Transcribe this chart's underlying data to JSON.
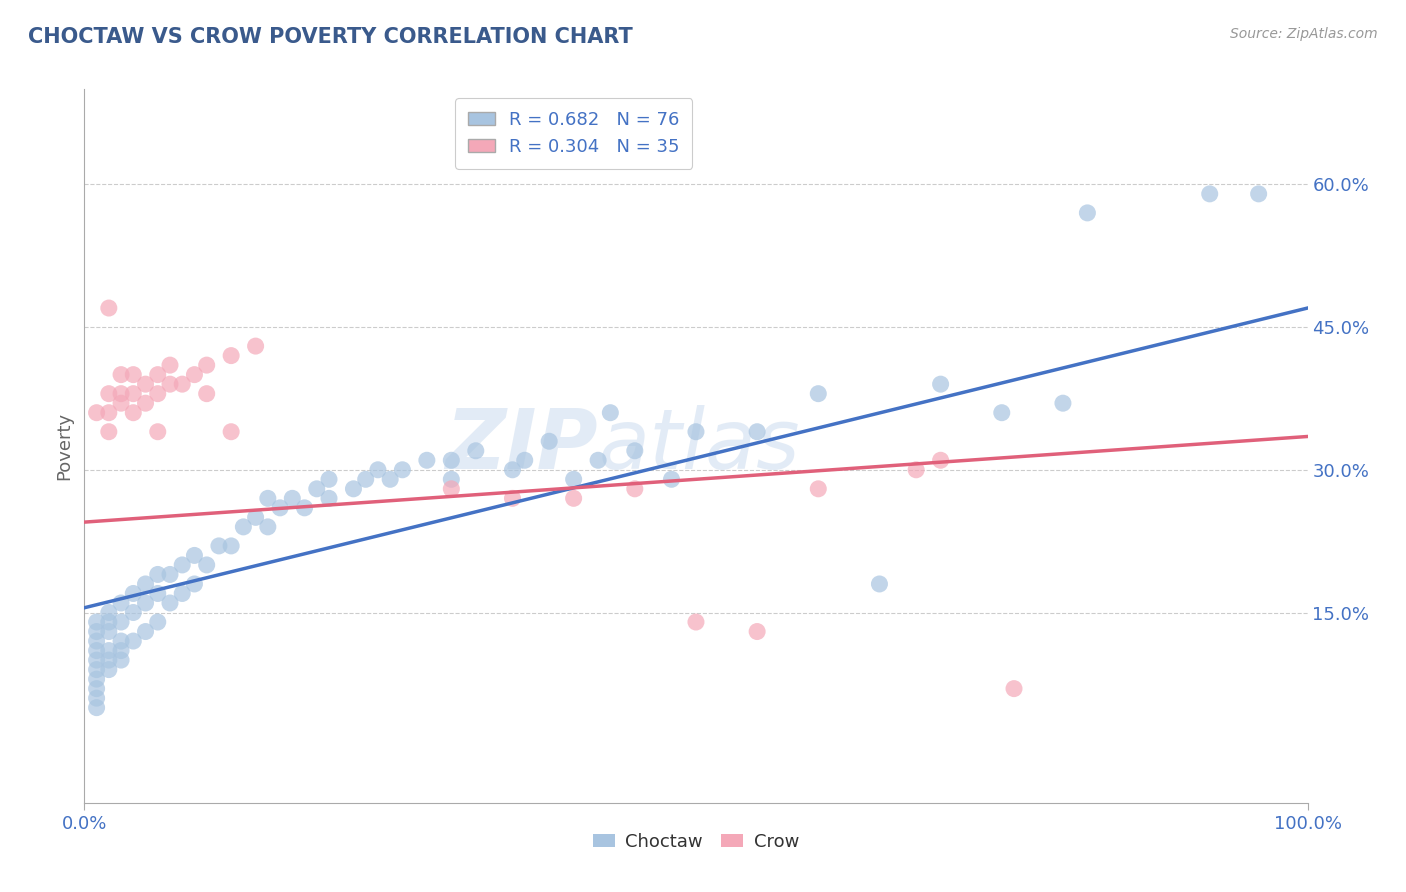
{
  "title": "CHOCTAW VS CROW POVERTY CORRELATION CHART",
  "source_text": "Source: ZipAtlas.com",
  "xlabel": "",
  "ylabel": "Poverty",
  "xlim": [
    0,
    1.0
  ],
  "ylim": [
    -0.05,
    0.7
  ],
  "x_ticks": [
    0.0,
    1.0
  ],
  "x_tick_labels": [
    "0.0%",
    "100.0%"
  ],
  "y_ticks": [
    0.15,
    0.3,
    0.45,
    0.6
  ],
  "y_tick_labels": [
    "15.0%",
    "30.0%",
    "45.0%",
    "60.0%"
  ],
  "choctaw_color": "#a8c4e0",
  "crow_color": "#f4a8b8",
  "choctaw_line_color": "#4472c4",
  "crow_line_color": "#e0607a",
  "choctaw_R": 0.682,
  "choctaw_N": 76,
  "crow_R": 0.304,
  "crow_N": 35,
  "watermark_zip": "ZIP",
  "watermark_atlas": "atlas",
  "background_color": "#ffffff",
  "grid_color": "#cccccc",
  "choctaw_scatter": [
    [
      0.01,
      0.05
    ],
    [
      0.01,
      0.06
    ],
    [
      0.01,
      0.07
    ],
    [
      0.01,
      0.08
    ],
    [
      0.01,
      0.09
    ],
    [
      0.01,
      0.1
    ],
    [
      0.01,
      0.11
    ],
    [
      0.01,
      0.12
    ],
    [
      0.01,
      0.13
    ],
    [
      0.01,
      0.14
    ],
    [
      0.02,
      0.09
    ],
    [
      0.02,
      0.1
    ],
    [
      0.02,
      0.11
    ],
    [
      0.02,
      0.13
    ],
    [
      0.02,
      0.14
    ],
    [
      0.02,
      0.15
    ],
    [
      0.03,
      0.1
    ],
    [
      0.03,
      0.11
    ],
    [
      0.03,
      0.12
    ],
    [
      0.03,
      0.14
    ],
    [
      0.03,
      0.16
    ],
    [
      0.04,
      0.12
    ],
    [
      0.04,
      0.15
    ],
    [
      0.04,
      0.17
    ],
    [
      0.05,
      0.13
    ],
    [
      0.05,
      0.16
    ],
    [
      0.05,
      0.18
    ],
    [
      0.06,
      0.14
    ],
    [
      0.06,
      0.17
    ],
    [
      0.06,
      0.19
    ],
    [
      0.07,
      0.16
    ],
    [
      0.07,
      0.19
    ],
    [
      0.08,
      0.17
    ],
    [
      0.08,
      0.2
    ],
    [
      0.09,
      0.18
    ],
    [
      0.09,
      0.21
    ],
    [
      0.1,
      0.2
    ],
    [
      0.11,
      0.22
    ],
    [
      0.12,
      0.22
    ],
    [
      0.13,
      0.24
    ],
    [
      0.14,
      0.25
    ],
    [
      0.15,
      0.24
    ],
    [
      0.15,
      0.27
    ],
    [
      0.16,
      0.26
    ],
    [
      0.17,
      0.27
    ],
    [
      0.18,
      0.26
    ],
    [
      0.19,
      0.28
    ],
    [
      0.2,
      0.27
    ],
    [
      0.2,
      0.29
    ],
    [
      0.22,
      0.28
    ],
    [
      0.23,
      0.29
    ],
    [
      0.24,
      0.3
    ],
    [
      0.25,
      0.29
    ],
    [
      0.26,
      0.3
    ],
    [
      0.28,
      0.31
    ],
    [
      0.3,
      0.29
    ],
    [
      0.3,
      0.31
    ],
    [
      0.32,
      0.32
    ],
    [
      0.35,
      0.3
    ],
    [
      0.36,
      0.31
    ],
    [
      0.38,
      0.33
    ],
    [
      0.4,
      0.29
    ],
    [
      0.42,
      0.31
    ],
    [
      0.45,
      0.32
    ],
    [
      0.48,
      0.29
    ],
    [
      0.5,
      0.34
    ],
    [
      0.55,
      0.34
    ],
    [
      0.6,
      0.38
    ],
    [
      0.65,
      0.18
    ],
    [
      0.7,
      0.39
    ],
    [
      0.75,
      0.36
    ],
    [
      0.8,
      0.37
    ],
    [
      0.82,
      0.57
    ],
    [
      0.92,
      0.59
    ],
    [
      0.96,
      0.59
    ],
    [
      0.43,
      0.36
    ]
  ],
  "crow_scatter": [
    [
      0.01,
      0.36
    ],
    [
      0.02,
      0.38
    ],
    [
      0.02,
      0.34
    ],
    [
      0.02,
      0.36
    ],
    [
      0.03,
      0.37
    ],
    [
      0.03,
      0.38
    ],
    [
      0.03,
      0.4
    ],
    [
      0.04,
      0.36
    ],
    [
      0.04,
      0.38
    ],
    [
      0.04,
      0.4
    ],
    [
      0.05,
      0.37
    ],
    [
      0.05,
      0.39
    ],
    [
      0.06,
      0.38
    ],
    [
      0.06,
      0.4
    ],
    [
      0.07,
      0.39
    ],
    [
      0.07,
      0.41
    ],
    [
      0.08,
      0.39
    ],
    [
      0.09,
      0.4
    ],
    [
      0.1,
      0.41
    ],
    [
      0.1,
      0.38
    ],
    [
      0.12,
      0.42
    ],
    [
      0.12,
      0.34
    ],
    [
      0.14,
      0.43
    ],
    [
      0.06,
      0.34
    ],
    [
      0.02,
      0.47
    ],
    [
      0.3,
      0.28
    ],
    [
      0.35,
      0.27
    ],
    [
      0.45,
      0.28
    ],
    [
      0.5,
      0.14
    ],
    [
      0.55,
      0.13
    ],
    [
      0.6,
      0.28
    ],
    [
      0.68,
      0.3
    ],
    [
      0.7,
      0.31
    ],
    [
      0.76,
      0.07
    ],
    [
      0.4,
      0.27
    ]
  ],
  "choctaw_line_x": [
    0.0,
    1.0
  ],
  "choctaw_line_y": [
    0.155,
    0.47
  ],
  "crow_line_x": [
    0.0,
    1.0
  ],
  "crow_line_y": [
    0.245,
    0.335
  ]
}
